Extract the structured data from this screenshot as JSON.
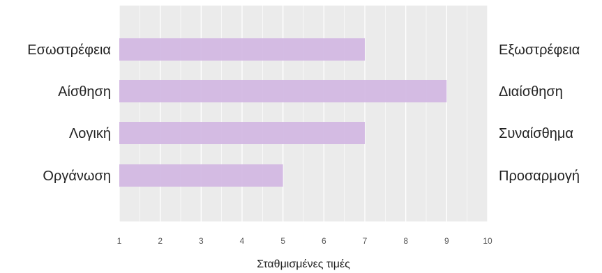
{
  "chart_data": {
    "type": "bar",
    "orientation": "horizontal",
    "categories": [
      "Εσωστρέφεια",
      "Αίσθηση",
      "Λογική",
      "Οργάνωση"
    ],
    "opposite_categories": [
      "Εξωστρέφεια",
      "Διαίσθηση",
      "Συναίσθημα",
      "Προσαρμογή"
    ],
    "values": [
      7,
      9,
      7,
      5
    ],
    "xlabel": "Σταθμισμένες τιμές",
    "ylabel": "",
    "xlim": [
      1,
      10
    ],
    "xticks": [
      1,
      2,
      3,
      4,
      5,
      6,
      7,
      8,
      9,
      10
    ],
    "grid": true,
    "colors": {
      "bar": "#d3b8e3",
      "plot_background": "#ebebeb",
      "grid": "#ffffff"
    }
  }
}
